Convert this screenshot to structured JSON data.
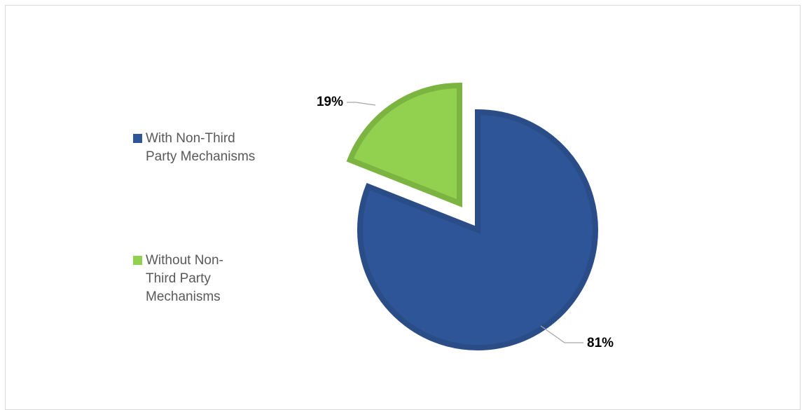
{
  "chart_data": {
    "type": "pie",
    "exploded": true,
    "legend_position": "left",
    "series": [
      {
        "name": "",
        "slices": [
          {
            "label": "With Non-Third Party Mechanisms",
            "value": 81,
            "data_label": "81%",
            "color": "#2e5597",
            "border": "#2a4d88"
          },
          {
            "label": "Without Non-Third Party Mechanisms",
            "value": 19,
            "data_label": "19%",
            "color": "#92d050",
            "border": "#7cb442"
          }
        ]
      }
    ],
    "legend": [
      {
        "label": "With Non-Third Party Mechanisms",
        "display": "With Non-Third\nParty Mechanisms",
        "color": "#2e5597"
      },
      {
        "label": "Without Non-Third Party Mechanisms",
        "display": "Without Non-\nThird Party\nMechanisms",
        "color": "#92d050"
      }
    ]
  }
}
